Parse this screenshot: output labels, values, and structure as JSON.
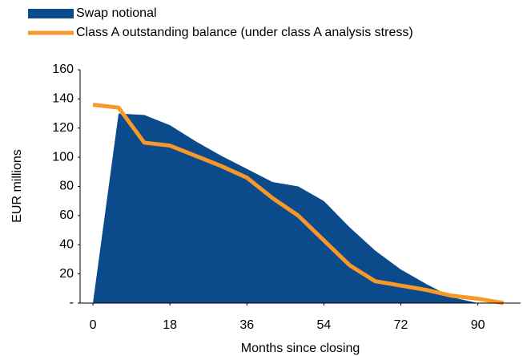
{
  "chart_data": {
    "type": "area_line",
    "xlabel": "Months since closing",
    "ylabel": "EUR  millions",
    "x": [
      0,
      6,
      12,
      18,
      24,
      30,
      36,
      42,
      48,
      54,
      60,
      66,
      72,
      78,
      84,
      90,
      96
    ],
    "series": [
      {
        "name": "Swap notional",
        "color": "#0b4a8b",
        "kind": "area",
        "values": [
          0,
          130,
          129,
          122,
          111,
          101,
          92,
          83,
          80,
          70,
          52,
          36,
          23,
          13,
          4,
          0,
          0
        ]
      },
      {
        "name": "Class A outstanding balance (under class A analysis stress)",
        "color": "#f7982a",
        "kind": "line",
        "values": [
          136,
          134,
          110,
          108,
          101,
          94,
          86,
          72,
          60,
          43,
          26,
          15,
          12,
          9,
          5,
          3,
          0
        ]
      }
    ],
    "xlim": [
      -3,
      100
    ],
    "xticks": [
      0,
      18,
      36,
      54,
      72,
      90
    ],
    "ylim": [
      0,
      160
    ],
    "yticks": [
      {
        "value": 0,
        "label": "-"
      },
      20,
      40,
      60,
      80,
      100,
      120,
      140,
      160
    ],
    "legend": "top-left"
  }
}
